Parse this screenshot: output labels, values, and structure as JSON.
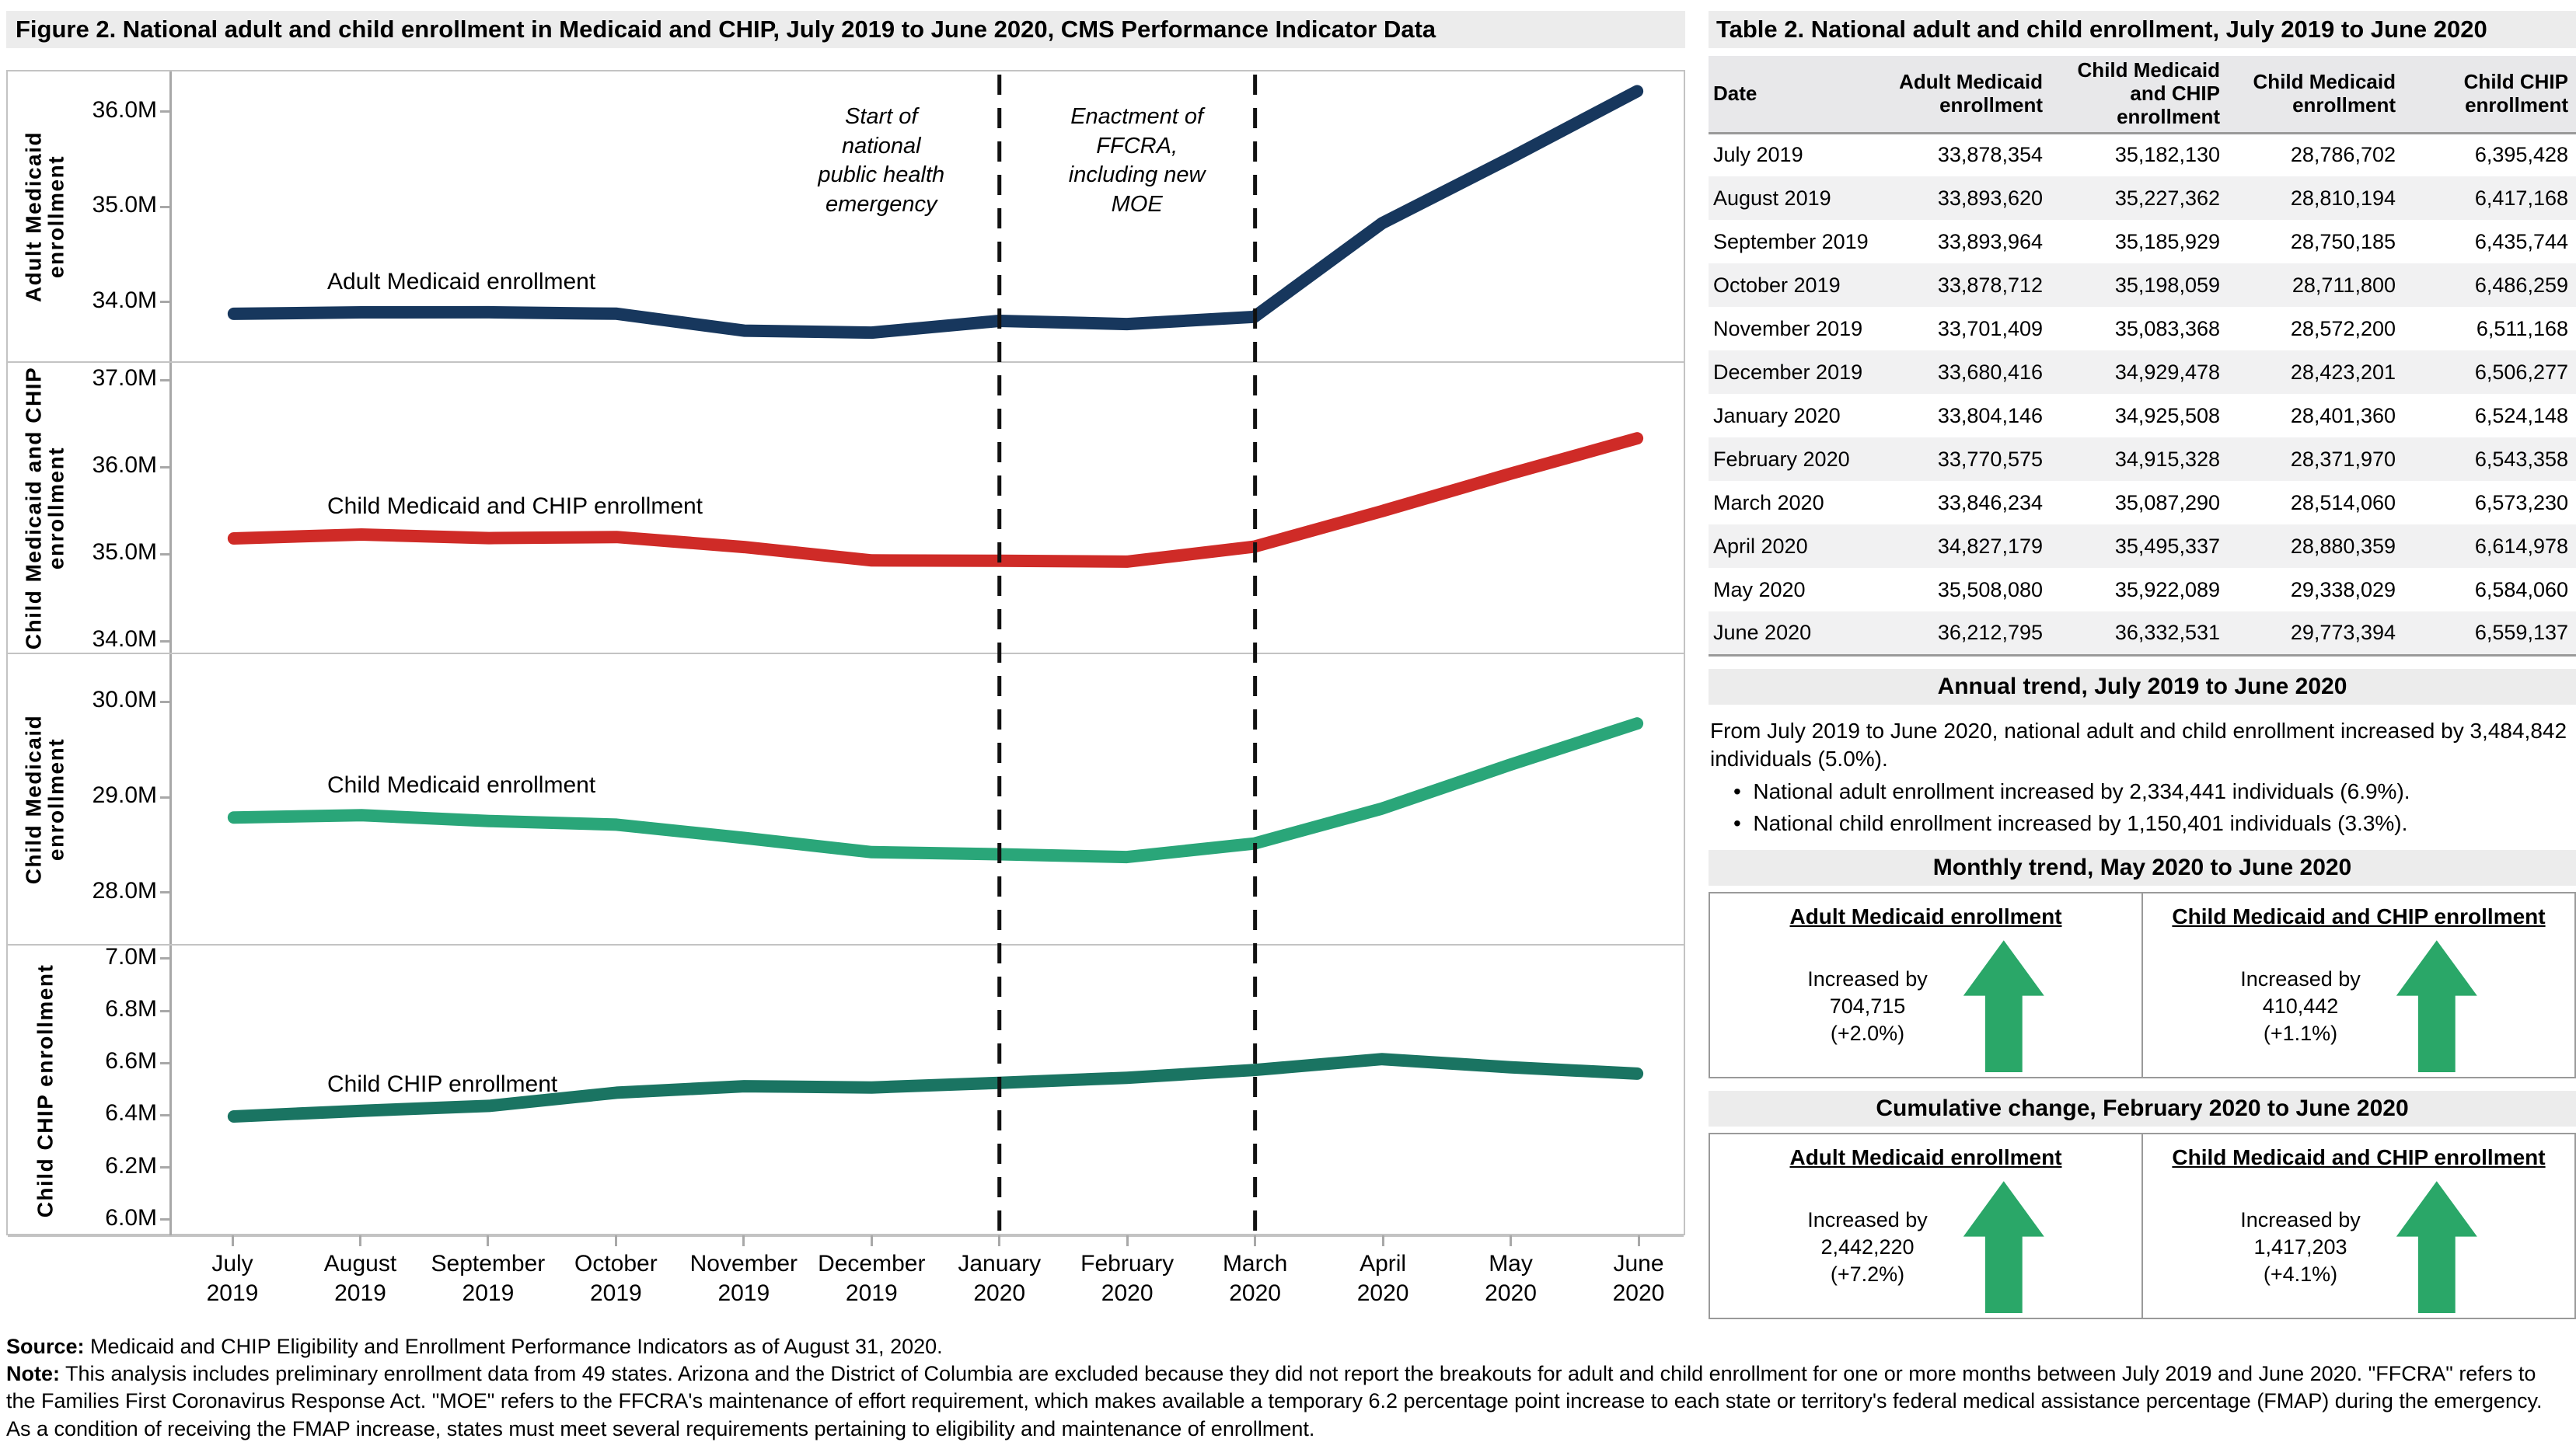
{
  "colors": {
    "adult_line": "#17375d",
    "child_medicaid_chip_line": "#cf2b27",
    "child_medicaid_line": "#2aa679",
    "child_chip_line": "#1a7462",
    "arrow_green": "#2aa768",
    "dashed_line": "#111111"
  },
  "figure": {
    "title": "Figure 2. National adult and child enrollment in Medicaid and CHIP, July 2019 to June 2020, CMS Performance Indicator Data",
    "months": [
      "July 2019",
      "August 2019",
      "September 2019",
      "October 2019",
      "November 2019",
      "December 2019",
      "January 2020",
      "February 2020",
      "March 2020",
      "April 2020",
      "May 2020",
      "June 2020"
    ],
    "annotations": [
      {
        "text": "Start of\nnational\npublic health\nemergency",
        "month_index": 6
      },
      {
        "text": "Enactment of\nFFCRA,\nincluding new\nMOE",
        "month_index": 8
      }
    ]
  },
  "chart_data": [
    {
      "type": "line",
      "series_label": "Adult Medicaid enrollment",
      "ylabel": "Adult Medicaid enrollment",
      "color": "#17375d",
      "x": [
        "July 2019",
        "August 2019",
        "September 2019",
        "October 2019",
        "November 2019",
        "December 2019",
        "January 2020",
        "February 2020",
        "March 2020",
        "April 2020",
        "May 2020",
        "June 2020"
      ],
      "values_millions": [
        33.878354,
        33.89362,
        33.893964,
        33.878712,
        33.701409,
        33.680416,
        33.804146,
        33.770575,
        33.846234,
        34.827179,
        35.50808,
        36.212795
      ],
      "yticks": [
        34.0,
        35.0,
        36.0
      ],
      "ylim": [
        33.38,
        36.42
      ],
      "grid": false
    },
    {
      "type": "line",
      "series_label": "Child Medicaid and CHIP enrollment",
      "ylabel": "Child Medicaid and CHIP\nenrollment",
      "color": "#cf2b27",
      "x": [
        "July 2019",
        "August 2019",
        "September 2019",
        "October 2019",
        "November 2019",
        "December 2019",
        "January 2020",
        "February 2020",
        "March 2020",
        "April 2020",
        "May 2020",
        "June 2020"
      ],
      "values_millions": [
        35.18213,
        35.227362,
        35.185929,
        35.198059,
        35.083368,
        34.929478,
        34.925508,
        34.915328,
        35.08729,
        35.495337,
        35.922089,
        36.332531
      ],
      "yticks": [
        34.0,
        35.0,
        36.0,
        37.0
      ],
      "ylim": [
        33.87,
        37.2
      ],
      "grid": false
    },
    {
      "type": "line",
      "series_label": "Child Medicaid enrollment",
      "ylabel": "Child Medicaid enrollment",
      "color": "#2aa679",
      "x": [
        "July 2019",
        "August 2019",
        "September 2019",
        "October 2019",
        "November 2019",
        "December 2019",
        "January 2020",
        "February 2020",
        "March 2020",
        "April 2020",
        "May 2020",
        "June 2020"
      ],
      "values_millions": [
        28.786702,
        28.810194,
        28.750185,
        28.7118,
        28.5722,
        28.423201,
        28.40136,
        28.37197,
        28.51406,
        28.880359,
        29.338029,
        29.773394
      ],
      "yticks": [
        28.0,
        29.0,
        30.0
      ],
      "ylim": [
        27.46,
        30.5
      ],
      "grid": false
    },
    {
      "type": "line",
      "series_label": "Child CHIP enrollment",
      "ylabel": "Child CHIP enrollment",
      "color": "#1a7462",
      "x": [
        "July 2019",
        "August 2019",
        "September 2019",
        "October 2019",
        "November 2019",
        "December 2019",
        "January 2020",
        "February 2020",
        "March 2020",
        "April 2020",
        "May 2020",
        "June 2020"
      ],
      "values_millions": [
        6.395428,
        6.417168,
        6.435744,
        6.486259,
        6.511168,
        6.506277,
        6.524148,
        6.543358,
        6.57323,
        6.614978,
        6.58406,
        6.559137
      ],
      "yticks": [
        6.0,
        6.2,
        6.4,
        6.6,
        6.8,
        7.0
      ],
      "ylim": [
        5.94,
        7.05
      ],
      "grid": false
    }
  ],
  "table": {
    "title": "Table 2. National adult and child enrollment, July 2019 to June 2020",
    "columns": [
      "Date",
      "Adult Medicaid enrollment",
      "Child Medicaid and CHIP enrollment",
      "Child Medicaid enrollment",
      "Child CHIP enrollment"
    ],
    "rows": [
      [
        "July 2019",
        "33,878,354",
        "35,182,130",
        "28,786,702",
        "6,395,428"
      ],
      [
        "August 2019",
        "33,893,620",
        "35,227,362",
        "28,810,194",
        "6,417,168"
      ],
      [
        "September 2019",
        "33,893,964",
        "35,185,929",
        "28,750,185",
        "6,435,744"
      ],
      [
        "October 2019",
        "33,878,712",
        "35,198,059",
        "28,711,800",
        "6,486,259"
      ],
      [
        "November 2019",
        "33,701,409",
        "35,083,368",
        "28,572,200",
        "6,511,168"
      ],
      [
        "December 2019",
        "33,680,416",
        "34,929,478",
        "28,423,201",
        "6,506,277"
      ],
      [
        "January 2020",
        "33,804,146",
        "34,925,508",
        "28,401,360",
        "6,524,148"
      ],
      [
        "February 2020",
        "33,770,575",
        "34,915,328",
        "28,371,970",
        "6,543,358"
      ],
      [
        "March 2020",
        "33,846,234",
        "35,087,290",
        "28,514,060",
        "6,573,230"
      ],
      [
        "April 2020",
        "34,827,179",
        "35,495,337",
        "28,880,359",
        "6,614,978"
      ],
      [
        "May 2020",
        "35,508,080",
        "35,922,089",
        "29,338,029",
        "6,584,060"
      ],
      [
        "June 2020",
        "36,212,795",
        "36,332,531",
        "29,773,394",
        "6,559,137"
      ]
    ]
  },
  "annual_trend": {
    "title": "Annual trend, July 2019 to June 2020",
    "paragraph": "From July 2019 to June 2020, national adult and child enrollment increased by 3,484,842 individuals (5.0%).",
    "bullets": [
      "National adult enrollment increased by 2,334,441 individuals (6.9%).",
      "National child enrollment increased by 1,150,401 individuals (3.3%)."
    ]
  },
  "monthly_trend": {
    "title": "Monthly trend, May 2020 to June 2020",
    "boxes": [
      {
        "heading": "Adult Medicaid enrollment",
        "line1": "Increased by",
        "line2": "704,715",
        "line3": "(+2.0%)"
      },
      {
        "heading": "Child Medicaid and CHIP enrollment",
        "line1": "Increased by",
        "line2": "410,442",
        "line3": "(+1.1%)"
      }
    ]
  },
  "cumulative_change": {
    "title": "Cumulative change, February 2020 to June 2020",
    "boxes": [
      {
        "heading": "Adult Medicaid enrollment",
        "line1": "Increased by",
        "line2": "2,442,220",
        "line3": "(+7.2%)"
      },
      {
        "heading": "Child Medicaid and CHIP enrollment",
        "line1": "Increased by",
        "line2": "1,417,203",
        "line3": "(+4.1%)"
      }
    ]
  },
  "footer": {
    "source_label": "Source:",
    "source_text": " Medicaid and CHIP Eligibility and Enrollment Performance Indicators as of August 31, 2020.",
    "note_label": "Note:",
    "note_text": " This analysis includes preliminary enrollment data from 49 states. Arizona and the District of Columbia are excluded because they did not report the breakouts for adult and child enrollment for one or more months between July 2019 and June 2020. \"FFCRA\" refers to the Families First Coronavirus Response Act. \"MOE\" refers to the FFCRA's maintenance of effort requirement, which makes available a temporary 6.2 percentage point increase to each state or territory's federal medical assistance percentage (FMAP) during the emergency. As a condition of receiving the FMAP increase, states must meet several requirements pertaining to eligibility and maintenance of enrollment."
  }
}
